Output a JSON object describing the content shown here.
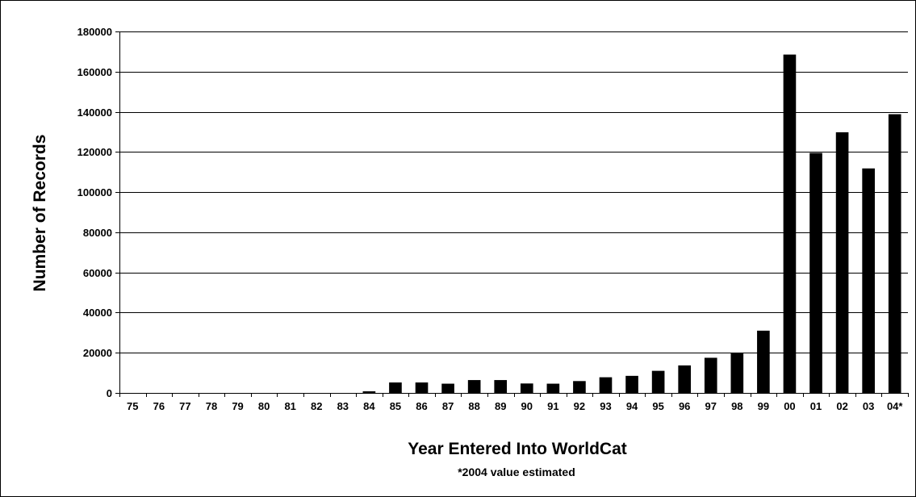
{
  "chart_data": {
    "type": "bar",
    "title": "",
    "xlabel": "Year Entered Into WorldCat",
    "ylabel": "Number of Records",
    "note": "*2004 value estimated",
    "categories": [
      "75",
      "76",
      "77",
      "78",
      "79",
      "80",
      "81",
      "82",
      "83",
      "84",
      "85",
      "86",
      "87",
      "88",
      "89",
      "90",
      "91",
      "92",
      "93",
      "94",
      "95",
      "96",
      "97",
      "98",
      "99",
      "00",
      "01",
      "02",
      "03",
      "04*"
    ],
    "values": [
      0,
      0,
      0,
      0,
      0,
      0,
      0,
      0,
      0,
      800,
      5200,
      5200,
      4600,
      6400,
      6400,
      4700,
      4600,
      5900,
      7800,
      8500,
      11000,
      13700,
      17500,
      20100,
      31000,
      168500,
      119500,
      129800,
      111800,
      138800
    ],
    "ylim": [
      0,
      180000
    ],
    "yticks": [
      0,
      20000,
      40000,
      60000,
      80000,
      100000,
      120000,
      140000,
      160000,
      180000
    ],
    "ytick_labels": [
      "0",
      "20000",
      "40000",
      "60000",
      "80000",
      "100000",
      "120000",
      "140000",
      "160000",
      "180000"
    ],
    "grid": true,
    "legend": "none",
    "bar_color": "#000000",
    "grid_color": "#000000"
  }
}
